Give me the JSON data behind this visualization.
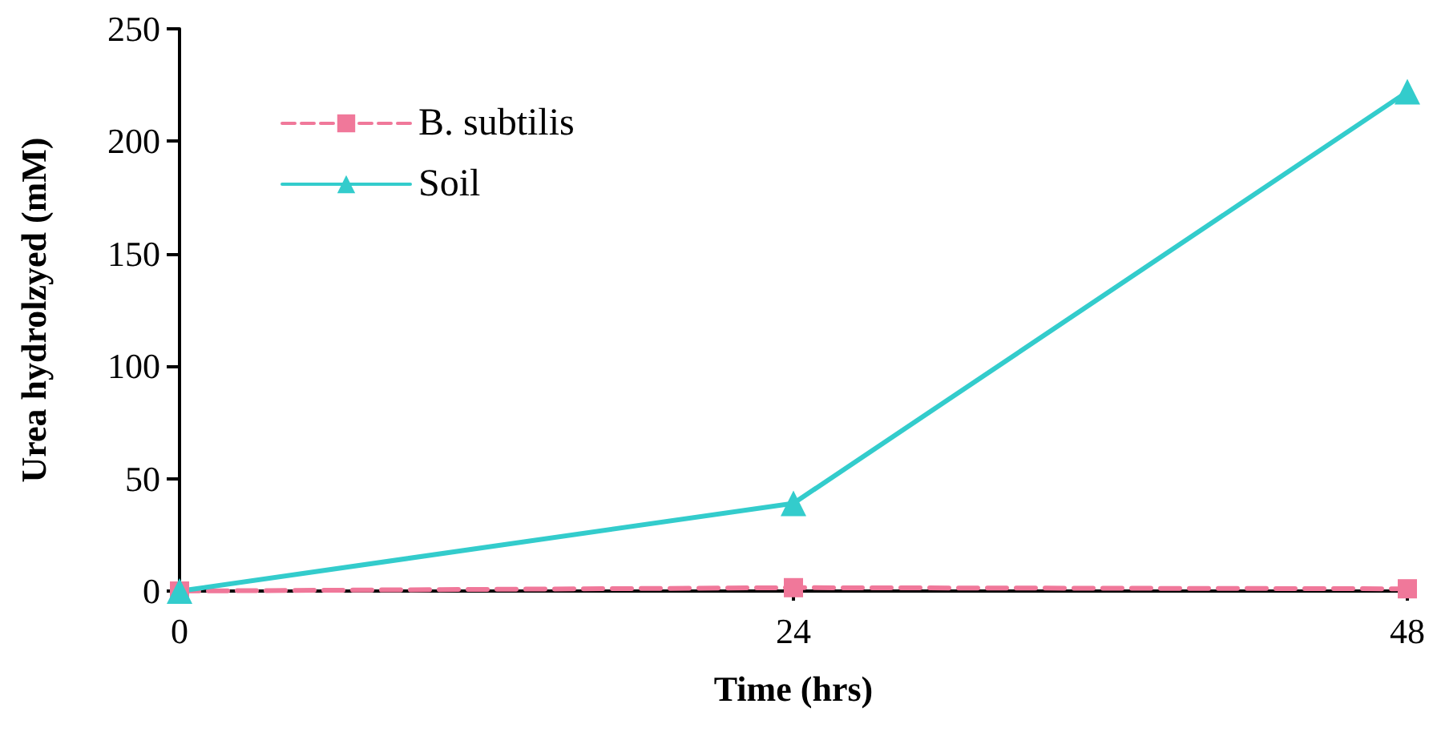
{
  "chart_data": {
    "type": "line",
    "xlabel": "Time (hrs)",
    "ylabel": "Urea hydrolzyed (mM)",
    "x": [
      0,
      24,
      48
    ],
    "series": [
      {
        "name": "B. subtilis",
        "color": "#f0789a",
        "values": [
          0,
          1.5,
          1
        ],
        "marker": "square",
        "line_style": "dashed"
      },
      {
        "name": "Soil",
        "color": "#33cccc",
        "values": [
          0,
          39,
          222
        ],
        "marker": "triangle",
        "line_style": "solid"
      }
    ],
    "xlim": [
      0,
      48
    ],
    "xticks": [
      0,
      24,
      48
    ],
    "ylim": [
      0,
      250
    ],
    "yticks": [
      0,
      50,
      100,
      150,
      200,
      250
    ],
    "grid": false,
    "legend": "top left"
  }
}
